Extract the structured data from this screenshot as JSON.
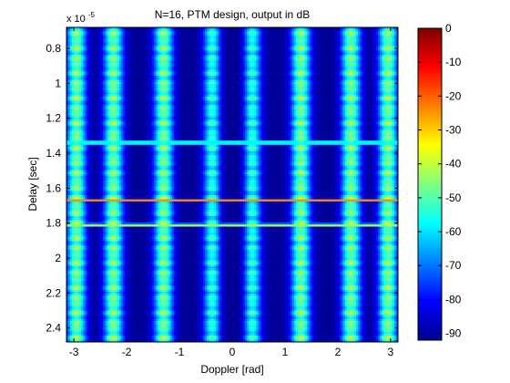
{
  "chart_data": {
    "type": "heatmap",
    "title": "N=16, PTM design, output in dB",
    "xlabel": "Doppler [rad]",
    "ylabel": "Delay [sec]",
    "y_exponent_label": "x 10",
    "y_exponent_power": "-5",
    "xlim": [
      -3.14,
      3.14
    ],
    "ylim": [
      0.68,
      2.48
    ],
    "y_reversed": true,
    "x_ticks": [
      "-3",
      "-2",
      "-1",
      "0",
      "1",
      "2",
      "3"
    ],
    "x_tick_values": [
      -3,
      -2,
      -1,
      0,
      1,
      2,
      3
    ],
    "y_ticks": [
      "0.8",
      "1",
      "1.2",
      "1.4",
      "1.6",
      "1.8",
      "2",
      "2.2",
      "2.4"
    ],
    "y_tick_values": [
      0.8,
      1.0,
      1.2,
      1.4,
      1.6,
      1.8,
      2.0,
      2.2,
      2.4
    ],
    "colorbar_ticks": [
      "0",
      "-10",
      "-20",
      "-30",
      "-40",
      "-50",
      "-60",
      "-70",
      "-80",
      "-90"
    ],
    "colorbar_tick_values": [
      0,
      -10,
      -20,
      -30,
      -40,
      -50,
      -60,
      -70,
      -80,
      -90
    ],
    "colorbar_range": [
      -92,
      0
    ],
    "colormap": "jet",
    "background_db": -90,
    "ridge_columns_x": [
      -2.95,
      -2.25,
      -1.3,
      -0.35,
      0.35,
      1.3,
      2.25,
      2.95
    ],
    "bright_rows_delay": [
      1.34,
      1.67,
      1.81
    ],
    "notch_center_x": 0.0
  }
}
